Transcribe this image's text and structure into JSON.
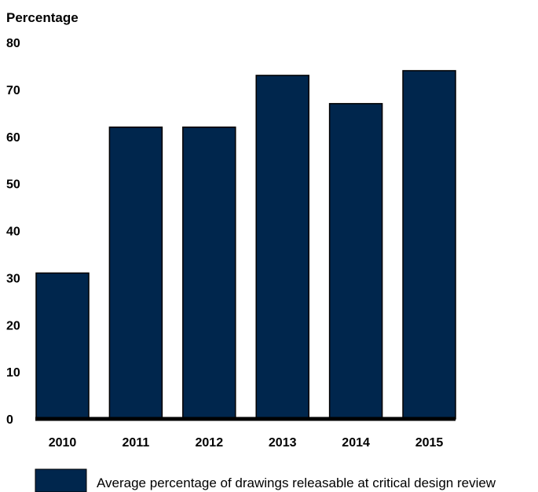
{
  "chart_data": {
    "type": "bar",
    "ylabel": "Percentage",
    "categories": [
      "2010",
      "2011",
      "2012",
      "2013",
      "2014",
      "2015"
    ],
    "series": [
      {
        "name": "Average percentage of drawings releasable at critical design review",
        "values": [
          31,
          62,
          62,
          73,
          67,
          74
        ]
      }
    ],
    "ylim": [
      0,
      80
    ],
    "yticks": [
      0,
      10,
      20,
      30,
      40,
      50,
      60,
      70,
      80
    ],
    "grid": false,
    "legend": "bottom",
    "bar_color": "#00264d"
  }
}
